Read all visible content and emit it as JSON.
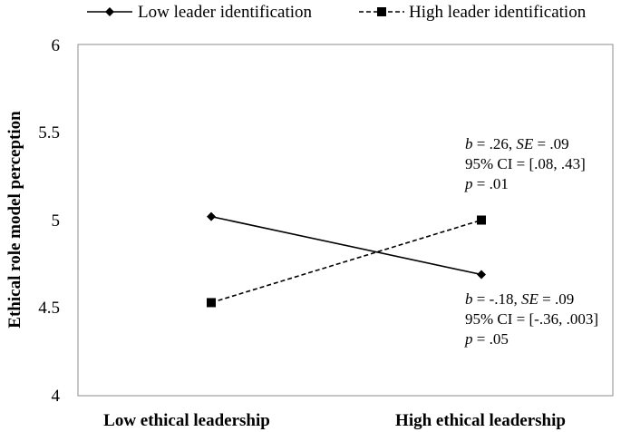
{
  "chart_data": {
    "type": "line",
    "title": "",
    "xlabel": "",
    "ylabel": "Ethical role model perception",
    "ylim": [
      4,
      6
    ],
    "yticks": [
      {
        "value": 4,
        "label": "4"
      },
      {
        "value": 4.5,
        "label": "4.5"
      },
      {
        "value": 5,
        "label": "5"
      },
      {
        "value": 5.5,
        "label": "5.5"
      },
      {
        "value": 6,
        "label": "6"
      }
    ],
    "categories": [
      "Low ethical leadership",
      "High ethical leadership"
    ],
    "grid": false,
    "legend_position": "top",
    "series": [
      {
        "name": "Low leader identification",
        "values": [
          5.02,
          4.69
        ],
        "line_style": "solid",
        "marker": "diamond",
        "color": "#000000"
      },
      {
        "name": "High leader identification",
        "values": [
          4.53,
          5.0
        ],
        "line_style": "dashed",
        "marker": "square",
        "color": "#000000"
      }
    ],
    "annotations": [
      {
        "lines": [
          {
            "b_label": "b",
            "b_value": " = .26, ",
            "se_label": "SE",
            "se_value": " = .09"
          },
          {
            "text": "95% CI = [.08, .43]"
          },
          {
            "p_label": "p",
            "p_value": " = .01"
          }
        ]
      },
      {
        "lines": [
          {
            "b_label": "b",
            "b_value": " = -.18, ",
            "se_label": "SE",
            "se_value": " = .09"
          },
          {
            "text": "95% CI = [-.36, .003]"
          },
          {
            "p_label": "p",
            "p_value": " = .05"
          }
        ]
      }
    ]
  }
}
